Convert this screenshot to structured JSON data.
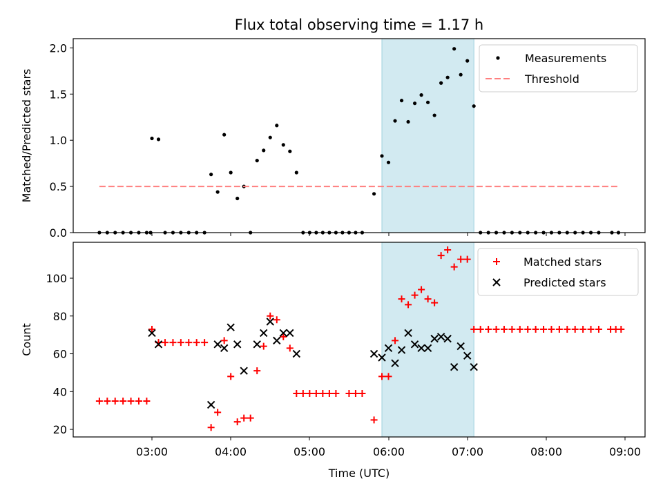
{
  "title": "Flux total observing time = 1.17 h",
  "chart_data": [
    {
      "type": "scatter",
      "ylabel": "Matched/Predicted stars",
      "ylim": [
        0,
        2.1
      ],
      "yticks": [
        "0.0",
        "0.5",
        "1.0",
        "1.5",
        "2.0"
      ],
      "ytick_values": [
        0,
        0.5,
        1.0,
        1.5,
        2.0
      ],
      "x_range": [
        "02:00",
        "09:15"
      ],
      "legend_position": "upper right",
      "shaded_span": [
        "05:55",
        "07:05"
      ],
      "shade_color": "#add8e6",
      "legend": [
        "Measurements",
        "Threshold"
      ],
      "series": [
        {
          "name": "Measurements",
          "color": "#000000",
          "marker": "dot",
          "points": [
            [
              "02:20",
              0
            ],
            [
              "02:26",
              0
            ],
            [
              "02:32",
              0
            ],
            [
              "02:38",
              0
            ],
            [
              "02:44",
              0
            ],
            [
              "02:50",
              0
            ],
            [
              "02:56",
              0
            ],
            [
              "02:59",
              0
            ],
            [
              "03:00",
              1.02
            ],
            [
              "03:05",
              1.01
            ],
            [
              "03:10",
              0
            ],
            [
              "03:16",
              0
            ],
            [
              "03:22",
              0
            ],
            [
              "03:28",
              0
            ],
            [
              "03:34",
              0
            ],
            [
              "03:40",
              0
            ],
            [
              "03:45",
              0.63
            ],
            [
              "03:50",
              0.44
            ],
            [
              "03:55",
              1.06
            ],
            [
              "04:00",
              0.65
            ],
            [
              "04:05",
              0.37
            ],
            [
              "04:10",
              0.5
            ],
            [
              "04:15",
              0
            ],
            [
              "04:20",
              0.78
            ],
            [
              "04:25",
              0.89
            ],
            [
              "04:30",
              1.03
            ],
            [
              "04:35",
              1.16
            ],
            [
              "04:40",
              0.95
            ],
            [
              "04:45",
              0.88
            ],
            [
              "04:50",
              0.65
            ],
            [
              "04:55",
              0
            ],
            [
              "05:00",
              0
            ],
            [
              "05:05",
              0
            ],
            [
              "05:10",
              0
            ],
            [
              "05:15",
              0
            ],
            [
              "05:20",
              0
            ],
            [
              "05:25",
              0
            ],
            [
              "05:30",
              0
            ],
            [
              "05:35",
              0
            ],
            [
              "05:40",
              0
            ],
            [
              "05:49",
              0.42
            ],
            [
              "05:55",
              0.83
            ],
            [
              "06:00",
              0.76
            ],
            [
              "06:05",
              1.21
            ],
            [
              "06:10",
              1.43
            ],
            [
              "06:15",
              1.2
            ],
            [
              "06:20",
              1.4
            ],
            [
              "06:25",
              1.49
            ],
            [
              "06:30",
              1.41
            ],
            [
              "06:35",
              1.27
            ],
            [
              "06:40",
              1.62
            ],
            [
              "06:45",
              1.68
            ],
            [
              "06:50",
              1.99
            ],
            [
              "06:55",
              1.71
            ],
            [
              "07:00",
              1.86
            ],
            [
              "07:05",
              1.37
            ],
            [
              "07:10",
              0
            ],
            [
              "07:16",
              0
            ],
            [
              "07:22",
              0
            ],
            [
              "07:28",
              0
            ],
            [
              "07:34",
              0
            ],
            [
              "07:40",
              0
            ],
            [
              "07:46",
              0
            ],
            [
              "07:52",
              0
            ],
            [
              "07:58",
              0
            ],
            [
              "08:04",
              0
            ],
            [
              "08:10",
              0
            ],
            [
              "08:16",
              0
            ],
            [
              "08:22",
              0
            ],
            [
              "08:28",
              0
            ],
            [
              "08:34",
              0
            ],
            [
              "08:40",
              0
            ],
            [
              "08:50",
              0
            ],
            [
              "08:55",
              0
            ]
          ]
        },
        {
          "name": "Threshold",
          "color": "#ff7f7f",
          "marker": "dashed-line",
          "points": [
            [
              "02:20",
              0.5
            ],
            [
              "08:55",
              0.5
            ]
          ]
        }
      ]
    },
    {
      "type": "scatter",
      "xlabel": "Time (UTC)",
      "ylabel": "Count",
      "ylim": [
        16,
        119
      ],
      "yticks": [
        "20",
        "40",
        "60",
        "80",
        "100"
      ],
      "ytick_values": [
        20,
        40,
        60,
        80,
        100
      ],
      "x_range": [
        "02:00",
        "09:15"
      ],
      "xticks": [
        "03:00",
        "04:00",
        "05:00",
        "06:00",
        "07:00",
        "08:00",
        "09:00"
      ],
      "legend_position": "upper right",
      "shaded_span": [
        "05:55",
        "07:05"
      ],
      "shade_color": "#add8e6",
      "legend": [
        "Matched stars",
        "Predicted stars"
      ],
      "series": [
        {
          "name": "Matched stars",
          "color": "#ff0000",
          "marker": "plus",
          "points": [
            [
              "02:20",
              35
            ],
            [
              "02:26",
              35
            ],
            [
              "02:32",
              35
            ],
            [
              "02:38",
              35
            ],
            [
              "02:44",
              35
            ],
            [
              "02:50",
              35
            ],
            [
              "02:56",
              35
            ],
            [
              "03:00",
              73
            ],
            [
              "03:05",
              66
            ],
            [
              "03:10",
              66
            ],
            [
              "03:16",
              66
            ],
            [
              "03:22",
              66
            ],
            [
              "03:28",
              66
            ],
            [
              "03:34",
              66
            ],
            [
              "03:40",
              66
            ],
            [
              "03:45",
              21
            ],
            [
              "03:50",
              29
            ],
            [
              "03:55",
              67
            ],
            [
              "04:00",
              48
            ],
            [
              "04:05",
              24
            ],
            [
              "04:10",
              26
            ],
            [
              "04:15",
              26
            ],
            [
              "04:20",
              51
            ],
            [
              "04:25",
              64
            ],
            [
              "04:30",
              80
            ],
            [
              "04:35",
              78
            ],
            [
              "04:40",
              69
            ],
            [
              "04:45",
              63
            ],
            [
              "04:50",
              39
            ],
            [
              "04:55",
              39
            ],
            [
              "05:00",
              39
            ],
            [
              "05:05",
              39
            ],
            [
              "05:10",
              39
            ],
            [
              "05:15",
              39
            ],
            [
              "05:20",
              39
            ],
            [
              "05:30",
              39
            ],
            [
              "05:35",
              39
            ],
            [
              "05:40",
              39
            ],
            [
              "05:49",
              25
            ],
            [
              "05:55",
              48
            ],
            [
              "06:00",
              48
            ],
            [
              "06:05",
              67
            ],
            [
              "06:10",
              89
            ],
            [
              "06:15",
              86
            ],
            [
              "06:20",
              91
            ],
            [
              "06:25",
              94
            ],
            [
              "06:30",
              89
            ],
            [
              "06:35",
              87
            ],
            [
              "06:40",
              112
            ],
            [
              "06:45",
              115
            ],
            [
              "06:50",
              106
            ],
            [
              "06:55",
              110
            ],
            [
              "07:00",
              110
            ],
            [
              "07:05",
              73
            ],
            [
              "07:10",
              73
            ],
            [
              "07:16",
              73
            ],
            [
              "07:22",
              73
            ],
            [
              "07:28",
              73
            ],
            [
              "07:34",
              73
            ],
            [
              "07:40",
              73
            ],
            [
              "07:46",
              73
            ],
            [
              "07:52",
              73
            ],
            [
              "07:58",
              73
            ],
            [
              "08:04",
              73
            ],
            [
              "08:10",
              73
            ],
            [
              "08:16",
              73
            ],
            [
              "08:22",
              73
            ],
            [
              "08:28",
              73
            ],
            [
              "08:34",
              73
            ],
            [
              "08:40",
              73
            ],
            [
              "08:49",
              73
            ],
            [
              "08:53",
              73
            ],
            [
              "08:57",
              73
            ]
          ]
        },
        {
          "name": "Predicted stars",
          "color": "#000000",
          "marker": "x",
          "points": [
            [
              "03:00",
              71
            ],
            [
              "03:05",
              65
            ],
            [
              "03:45",
              33
            ],
            [
              "03:50",
              65
            ],
            [
              "03:55",
              63
            ],
            [
              "04:00",
              74
            ],
            [
              "04:05",
              65
            ],
            [
              "04:10",
              51
            ],
            [
              "04:20",
              65
            ],
            [
              "04:25",
              71
            ],
            [
              "04:30",
              77
            ],
            [
              "04:35",
              67
            ],
            [
              "04:40",
              71
            ],
            [
              "04:45",
              71
            ],
            [
              "04:50",
              60
            ],
            [
              "05:49",
              60
            ],
            [
              "05:55",
              58
            ],
            [
              "06:00",
              63
            ],
            [
              "06:05",
              55
            ],
            [
              "06:10",
              62
            ],
            [
              "06:15",
              71
            ],
            [
              "06:20",
              65
            ],
            [
              "06:25",
              63
            ],
            [
              "06:30",
              63
            ],
            [
              "06:35",
              68
            ],
            [
              "06:40",
              69
            ],
            [
              "06:45",
              68
            ],
            [
              "06:50",
              53
            ],
            [
              "06:55",
              64
            ],
            [
              "07:00",
              59
            ],
            [
              "07:05",
              53
            ]
          ]
        }
      ]
    }
  ]
}
